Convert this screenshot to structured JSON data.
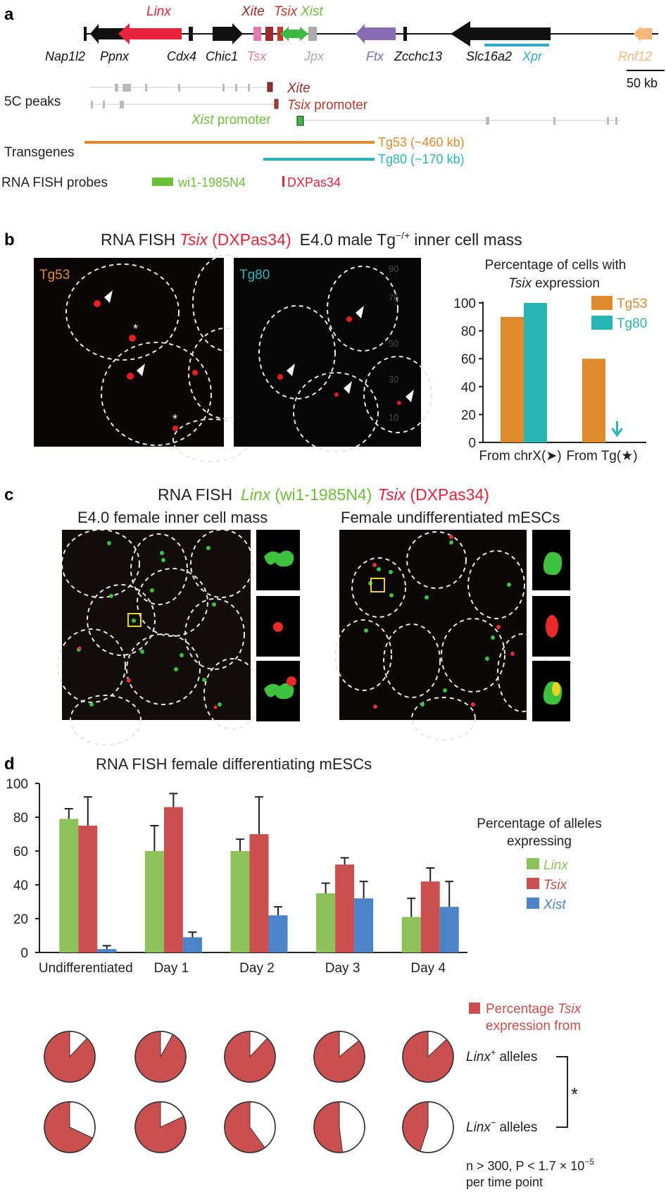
{
  "panel_labels": {
    "a": "a",
    "b": "b",
    "c": "c",
    "d": "d"
  },
  "panel_a": {
    "genes_top": {
      "linx": "Linx",
      "xite": "Xite",
      "tsix": "Tsix",
      "xist": "Xist"
    },
    "genes_bottom": {
      "nap1l2": "Nap1l2",
      "ppnx": "Ppnx",
      "cdx4": "Cdx4",
      "chic1": "Chic1",
      "tsx": "Tsx",
      "jpx": "Jpx",
      "ftx": "Ftx",
      "zcchc13": "Zcchc13",
      "slc16a2": "Slc16a2",
      "xpr": "Xpr",
      "rnf12": "Rnf12"
    },
    "scale_bar": "50 kb",
    "peaks_label": "5C peaks",
    "peak_xite": "Xite",
    "peak_tsix_gene": "Tsix",
    "peak_tsix_suffix": "promoter",
    "peak_xist_gene": "Xist",
    "peak_xist_suffix": "promoter",
    "transgenes_label": "Transgenes",
    "tg53": "Tg53 (~460 kb)",
    "tg80": "Tg80 (~170 kb)",
    "probes_label": "RNA FISH probes",
    "probe_green": "wi1-1985N4",
    "probe_red": "DXPas34",
    "colors": {
      "linx": "#e8243c",
      "xite": "#9b2a2a",
      "tsix": "#c0392b",
      "xist": "#6dbf3c",
      "tsx": "#e07ab5",
      "jpx": "#aaaaaa",
      "ftx": "#8a6bb5",
      "xpr": "#35a8c8",
      "rnf12": "#f5b87a",
      "tg53": "#e08a2e",
      "tg80": "#27b5b5"
    }
  },
  "panel_b": {
    "title_prefix": "RNA FISH",
    "title_gene": "Tsix",
    "title_probe": "(DXPas34)",
    "title_suffix": "E4.0 male Tg",
    "title_sup": "−/+",
    "title_end": "inner cell mass",
    "img1_label": "Tg53",
    "img2_label": "Tg80",
    "ghost_ticks": [
      "90",
      "70",
      "50",
      "30",
      "10"
    ],
    "chart_title_1": "Percentage of cells with",
    "chart_title_gene": "Tsix",
    "chart_title_2": "expression",
    "cat1": "From chrX(➤)",
    "cat2": "From Tg(★)"
  },
  "panel_c": {
    "title_prefix": "RNA FISH",
    "title_linx": "Linx",
    "title_linx_probe": "(wi1-1985N4)",
    "title_tsix": "Tsix",
    "title_tsix_probe": "(DXPas34)",
    "left_title": "E4.0 female inner cell mass",
    "right_title": "Female undifferentiated mESCs"
  },
  "panel_d": {
    "title": "RNA FISH female differentiating mESCs",
    "legend_title_1": "Percentage of alleles",
    "legend_title_2": "expressing",
    "pie_legend_1": "Percentage",
    "pie_legend_gene": "Tsix",
    "pie_legend_2": "expression from",
    "row1_gene": "Linx",
    "row1_sup": "+",
    "row1_suffix": "alleles",
    "row2_gene": "Linx",
    "row2_sup": "−",
    "row2_suffix": "alleles",
    "sig": "*",
    "stats_1": "n > 300, P < 1.7 × 10",
    "stats_exp": "−5",
    "stats_2": "per time point"
  },
  "chart_data": [
    {
      "type": "bar",
      "title": "Percentage of cells with Tsix expression",
      "categories": [
        "From chrX(➤)",
        "From Tg(★)"
      ],
      "series": [
        {
          "name": "Tg53",
          "color": "#e08a2e",
          "values": [
            90,
            60
          ]
        },
        {
          "name": "Tg80",
          "color": "#27b5b5",
          "values": [
            100,
            0
          ]
        }
      ],
      "ylim": [
        0,
        100
      ],
      "yticks": [
        0,
        20,
        40,
        60,
        80,
        100
      ],
      "legend": "top-right",
      "annotation": "arrow marks zero value for Tg80 from Tg"
    },
    {
      "type": "bar",
      "title": "RNA FISH female differentiating mESCs",
      "categories": [
        "Undifferentiated",
        "Day 1",
        "Day 2",
        "Day 3",
        "Day 4"
      ],
      "series": [
        {
          "name": "Linx",
          "color": "#8dc15a",
          "values": [
            79,
            60,
            60,
            35,
            21
          ],
          "error": [
            6,
            15,
            7,
            6,
            11
          ]
        },
        {
          "name": "Tsix",
          "color": "#c9504f",
          "values": [
            75,
            86,
            70,
            52,
            42
          ],
          "error": [
            17,
            8,
            22,
            4,
            8
          ]
        },
        {
          "name": "Xist",
          "color": "#4a83c8",
          "values": [
            2,
            9,
            22,
            32,
            27
          ],
          "error": [
            2,
            3,
            5,
            10,
            15
          ]
        }
      ],
      "ylim": [
        0,
        100
      ],
      "yticks": [
        0,
        20,
        40,
        60,
        80,
        100
      ],
      "legend": "right"
    },
    {
      "type": "pie",
      "title": "Percentage Tsix expression from",
      "categories": [
        "Undifferentiated",
        "Day 1",
        "Day 2",
        "Day 3",
        "Day 4"
      ],
      "series": [
        {
          "name": "Linx+ alleles",
          "values": [
            88,
            92,
            88,
            86,
            87
          ]
        },
        {
          "name": "Linx− alleles",
          "values": [
            68,
            82,
            60,
            52,
            45
          ]
        }
      ],
      "color": "#c9504f"
    }
  ]
}
